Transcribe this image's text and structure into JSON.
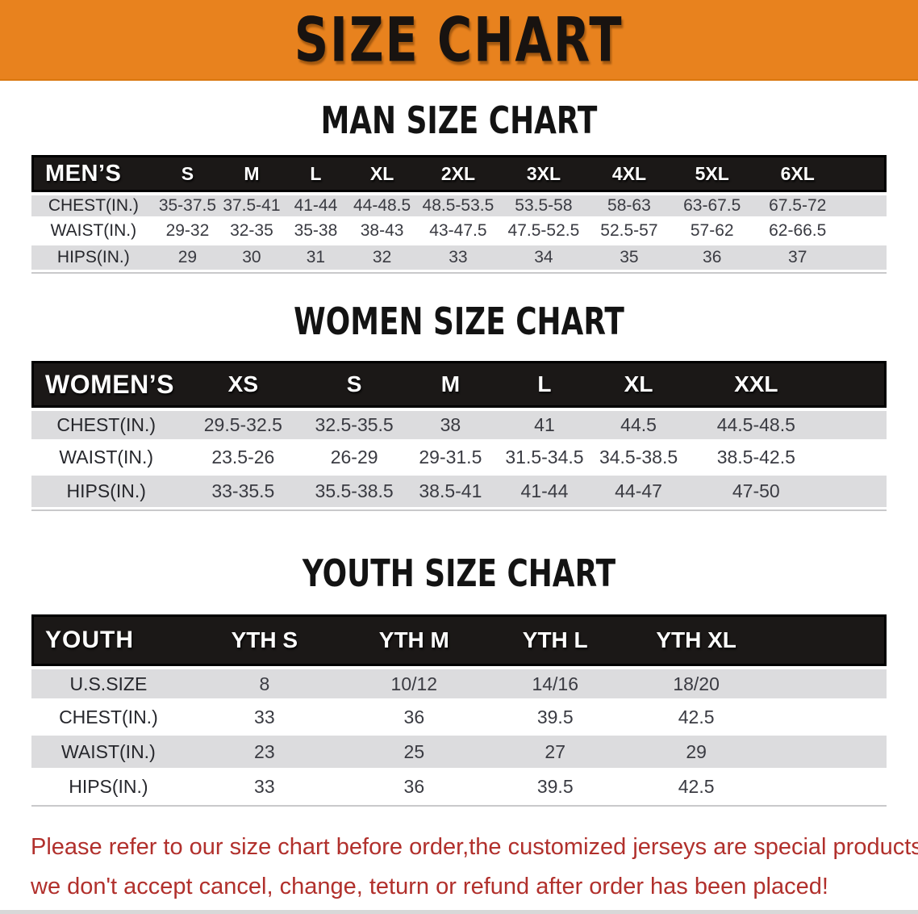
{
  "banner": {
    "title": "SIZE CHART"
  },
  "sections": [
    {
      "heading": "MAN SIZE CHART",
      "table": {
        "header": {
          "label": "MEN’S",
          "columns": [
            "S",
            "M",
            "L",
            "XL",
            "2XL",
            "3XL",
            "4XL",
            "5XL",
            "6XL"
          ]
        },
        "rows": [
          {
            "label": "CHEST(IN.)",
            "values": [
              "35-37.5",
              "37.5-41",
              "41-44",
              "44-48.5",
              "48.5-53.5",
              "53.5-58",
              "58-63",
              "63-67.5",
              "67.5-72"
            ]
          },
          {
            "label": "WAIST(IN.)",
            "values": [
              "29-32",
              "32-35",
              "35-38",
              "38-43",
              "43-47.5",
              "47.5-52.5",
              "52.5-57",
              "57-62",
              "62-66.5"
            ]
          },
          {
            "label": "HIPS(IN.)",
            "values": [
              "29",
              "30",
              "31",
              "32",
              "33",
              "34",
              "35",
              "36",
              "37"
            ]
          }
        ]
      }
    },
    {
      "heading": "WOMEN SIZE CHART",
      "table": {
        "header": {
          "label": "WOMEN’S",
          "columns": [
            "XS",
            "S",
            "M",
            "L",
            "XL",
            "XXL"
          ]
        },
        "rows": [
          {
            "label": "CHEST(IN.)",
            "values": [
              "29.5-32.5",
              "32.5-35.5",
              "38",
              "41",
              "44.5",
              "44.5-48.5"
            ]
          },
          {
            "label": "WAIST(IN.)",
            "values": [
              "23.5-26",
              "26-29",
              "29-31.5",
              "31.5-34.5",
              "34.5-38.5",
              "38.5-42.5"
            ]
          },
          {
            "label": "HIPS(IN.)",
            "values": [
              "33-35.5",
              "35.5-38.5",
              "38.5-41",
              "41-44",
              "44-47",
              "47-50"
            ]
          }
        ]
      }
    },
    {
      "heading": "YOUTH SIZE CHART",
      "table": {
        "header": {
          "label": "YOUTH",
          "columns": [
            "YTH S",
            "YTH M",
            "YTH L",
            "YTH XL"
          ]
        },
        "rows": [
          {
            "label": "U.S.SIZE",
            "values": [
              "8",
              "10/12",
              "14/16",
              "18/20"
            ]
          },
          {
            "label": "CHEST(IN.)",
            "values": [
              "33",
              "36",
              "39.5",
              "42.5"
            ]
          },
          {
            "label": "WAIST(IN.)",
            "values": [
              "23",
              "25",
              "27",
              "29"
            ]
          },
          {
            "label": "HIPS(IN.)",
            "values": [
              "33",
              "36",
              "39.5",
              "42.5"
            ]
          }
        ]
      }
    }
  ],
  "note": {
    "line1": "Please refer to our size chart before order,the customized jerseys are special products,",
    "line2": "we don't accept cancel, change, teturn or refund after order has been placed!"
  },
  "colors": {
    "banner_bg": "#E8821E",
    "header_band_bg": "#1B1817",
    "row_stripe": "#DCDCDE",
    "heading_text": "#131313",
    "note_text": "#B1302C"
  }
}
